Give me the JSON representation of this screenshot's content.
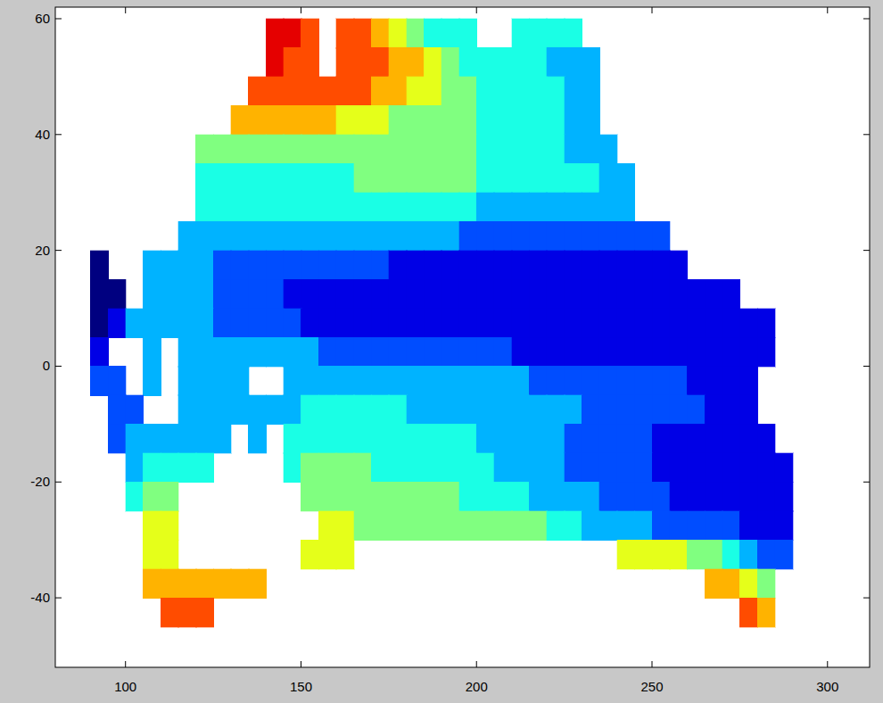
{
  "chart_data": {
    "type": "heatmap",
    "x": [
      92.5,
      97.5,
      102.5,
      107.5,
      112.5,
      117.5,
      122.5,
      127.5,
      132.5,
      137.5,
      142.5,
      147.5,
      152.5,
      157.5,
      162.5,
      167.5,
      172.5,
      177.5,
      182.5,
      187.5,
      192.5,
      197.5,
      202.5,
      207.5,
      212.5,
      217.5,
      222.5,
      227.5,
      232.5,
      237.5,
      242.5,
      247.5,
      252.5,
      257.5,
      262.5,
      267.5,
      272.5,
      277.5,
      282.5,
      287.5
    ],
    "y": [
      57.5,
      52.5,
      47.5,
      42.5,
      37.5,
      32.5,
      27.5,
      22.5,
      17.5,
      12.5,
      7.5,
      2.5,
      -2.5,
      -7.5,
      -12.5,
      -17.5,
      -22.5,
      -27.5,
      -32.5,
      -37.5,
      -42.5
    ],
    "cells": [
      [
        null,
        null,
        null,
        null,
        null,
        null,
        null,
        null,
        null,
        null,
        9,
        9,
        8,
        null,
        8,
        8,
        7,
        6,
        5,
        4,
        4,
        4,
        null,
        null,
        4,
        4,
        4,
        4,
        null,
        null,
        null,
        null,
        null,
        null,
        null,
        null,
        null,
        null,
        null,
        null
      ],
      [
        null,
        null,
        null,
        null,
        null,
        null,
        null,
        null,
        null,
        null,
        9,
        8,
        8,
        null,
        8,
        8,
        8,
        7,
        7,
        6,
        5,
        4,
        4,
        4,
        4,
        4,
        3,
        3,
        3,
        null,
        null,
        null,
        null,
        null,
        null,
        null,
        null,
        null,
        null,
        null
      ],
      [
        null,
        null,
        null,
        null,
        null,
        null,
        null,
        null,
        null,
        8,
        8,
        8,
        8,
        8,
        8,
        8,
        7,
        7,
        6,
        6,
        5,
        5,
        4,
        4,
        4,
        4,
        4,
        3,
        3,
        null,
        null,
        null,
        null,
        null,
        null,
        null,
        null,
        null,
        null,
        null
      ],
      [
        null,
        null,
        null,
        null,
        null,
        null,
        null,
        null,
        7,
        7,
        7,
        7,
        7,
        7,
        6,
        6,
        6,
        5,
        5,
        5,
        5,
        5,
        4,
        4,
        4,
        4,
        4,
        3,
        3,
        null,
        null,
        null,
        null,
        null,
        null,
        null,
        null,
        null,
        null,
        null
      ],
      [
        null,
        null,
        null,
        null,
        null,
        null,
        5,
        5,
        5,
        5,
        5,
        5,
        5,
        5,
        5,
        5,
        5,
        5,
        5,
        5,
        5,
        5,
        4,
        4,
        4,
        4,
        4,
        3,
        3,
        3,
        null,
        null,
        null,
        null,
        null,
        null,
        null,
        null,
        null,
        null
      ],
      [
        null,
        null,
        null,
        null,
        null,
        null,
        4,
        4,
        4,
        4,
        4,
        4,
        4,
        4,
        4,
        5,
        5,
        5,
        5,
        5,
        5,
        5,
        4,
        4,
        4,
        4,
        4,
        4,
        4,
        3,
        3,
        null,
        null,
        null,
        null,
        null,
        null,
        null,
        null,
        null
      ],
      [
        null,
        null,
        null,
        null,
        null,
        null,
        4,
        4,
        4,
        4,
        4,
        4,
        4,
        4,
        4,
        4,
        4,
        4,
        4,
        4,
        4,
        4,
        3,
        3,
        3,
        3,
        3,
        3,
        3,
        3,
        3,
        null,
        null,
        null,
        null,
        null,
        null,
        null,
        null,
        null
      ],
      [
        null,
        null,
        null,
        null,
        null,
        3,
        3,
        3,
        3,
        3,
        3,
        3,
        3,
        3,
        3,
        3,
        3,
        3,
        3,
        3,
        3,
        2,
        2,
        2,
        2,
        2,
        2,
        2,
        2,
        2,
        2,
        2,
        2,
        null,
        null,
        null,
        null,
        null,
        null,
        null
      ],
      [
        0,
        null,
        null,
        3,
        3,
        3,
        3,
        2,
        2,
        2,
        2,
        2,
        2,
        2,
        2,
        2,
        2,
        1,
        1,
        1,
        1,
        1,
        1,
        1,
        1,
        1,
        1,
        1,
        1,
        1,
        1,
        1,
        1,
        1,
        null,
        null,
        null,
        null,
        null,
        null
      ],
      [
        0,
        0,
        null,
        3,
        3,
        3,
        3,
        2,
        2,
        2,
        2,
        1,
        1,
        1,
        1,
        1,
        1,
        1,
        1,
        1,
        1,
        1,
        1,
        1,
        1,
        1,
        1,
        1,
        1,
        1,
        1,
        1,
        1,
        1,
        1,
        1,
        1,
        null,
        null,
        null
      ],
      [
        0,
        1,
        3,
        3,
        3,
        3,
        3,
        2,
        2,
        2,
        2,
        2,
        1,
        1,
        1,
        1,
        1,
        1,
        1,
        1,
        1,
        1,
        1,
        1,
        1,
        1,
        1,
        1,
        1,
        1,
        1,
        1,
        1,
        1,
        1,
        1,
        1,
        1,
        1,
        null
      ],
      [
        1,
        null,
        null,
        3,
        null,
        3,
        3,
        3,
        3,
        3,
        3,
        3,
        3,
        2,
        2,
        2,
        2,
        2,
        2,
        2,
        2,
        2,
        2,
        2,
        1,
        1,
        1,
        1,
        1,
        1,
        1,
        1,
        1,
        1,
        1,
        1,
        1,
        1,
        1,
        null
      ],
      [
        2,
        2,
        null,
        3,
        null,
        3,
        3,
        3,
        3,
        null,
        null,
        3,
        3,
        3,
        3,
        3,
        3,
        3,
        3,
        3,
        3,
        3,
        3,
        3,
        3,
        2,
        2,
        2,
        2,
        2,
        2,
        2,
        2,
        2,
        1,
        1,
        1,
        1,
        null,
        null
      ],
      [
        null,
        2,
        2,
        null,
        null,
        3,
        3,
        3,
        3,
        3,
        3,
        3,
        4,
        4,
        4,
        4,
        4,
        4,
        3,
        3,
        3,
        3,
        3,
        3,
        3,
        3,
        3,
        3,
        2,
        2,
        2,
        2,
        2,
        2,
        2,
        1,
        1,
        1,
        null,
        null
      ],
      [
        null,
        2,
        3,
        3,
        3,
        3,
        3,
        3,
        null,
        3,
        null,
        4,
        4,
        4,
        4,
        4,
        4,
        4,
        4,
        4,
        4,
        4,
        3,
        3,
        3,
        3,
        3,
        2,
        2,
        2,
        2,
        2,
        1,
        1,
        1,
        1,
        1,
        1,
        1,
        null
      ],
      [
        null,
        null,
        3,
        4,
        4,
        4,
        4,
        null,
        null,
        null,
        null,
        4,
        5,
        5,
        5,
        5,
        4,
        4,
        4,
        4,
        4,
        4,
        4,
        3,
        3,
        3,
        3,
        2,
        2,
        2,
        2,
        2,
        1,
        1,
        1,
        1,
        1,
        1,
        1,
        1
      ],
      [
        null,
        null,
        4,
        5,
        5,
        null,
        null,
        null,
        null,
        null,
        null,
        null,
        5,
        5,
        5,
        5,
        5,
        5,
        5,
        5,
        5,
        4,
        4,
        4,
        4,
        3,
        3,
        3,
        3,
        2,
        2,
        2,
        2,
        1,
        1,
        1,
        1,
        1,
        1,
        1
      ],
      [
        null,
        null,
        null,
        6,
        6,
        null,
        null,
        null,
        null,
        null,
        null,
        null,
        null,
        6,
        6,
        5,
        5,
        5,
        5,
        5,
        5,
        5,
        5,
        5,
        5,
        5,
        4,
        4,
        3,
        3,
        3,
        3,
        2,
        2,
        2,
        2,
        2,
        1,
        1,
        1
      ],
      [
        null,
        null,
        null,
        6,
        6,
        null,
        null,
        null,
        null,
        null,
        null,
        null,
        6,
        6,
        6,
        null,
        null,
        null,
        null,
        null,
        null,
        null,
        null,
        null,
        null,
        null,
        null,
        null,
        null,
        null,
        6,
        6,
        6,
        6,
        5,
        5,
        4,
        3,
        2,
        2
      ],
      [
        null,
        null,
        null,
        7,
        7,
        7,
        7,
        7,
        7,
        7,
        null,
        null,
        null,
        null,
        null,
        null,
        null,
        null,
        null,
        null,
        null,
        null,
        null,
        null,
        null,
        null,
        null,
        null,
        null,
        null,
        null,
        null,
        null,
        null,
        null,
        7,
        7,
        6,
        5,
        null
      ],
      [
        null,
        null,
        null,
        null,
        8,
        8,
        8,
        null,
        null,
        null,
        null,
        null,
        null,
        null,
        null,
        null,
        null,
        null,
        null,
        null,
        null,
        null,
        null,
        null,
        null,
        null,
        null,
        null,
        null,
        null,
        null,
        null,
        null,
        null,
        null,
        null,
        null,
        8,
        7,
        null
      ]
    ],
    "clim": [
      0,
      10
    ],
    "xlim": [
      80,
      312
    ],
    "ylim": [
      -52,
      62
    ],
    "xticks": [
      100,
      150,
      200,
      250,
      300
    ],
    "yticks": [
      -40,
      -20,
      0,
      20,
      40,
      60
    ],
    "grid": false
  }
}
